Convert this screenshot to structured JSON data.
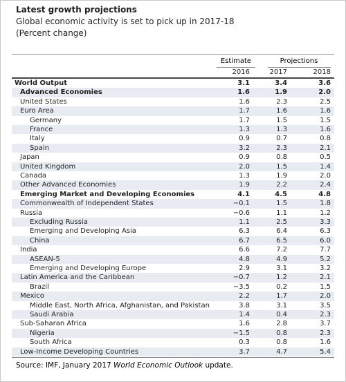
{
  "header": {
    "title": "Latest growth projections",
    "subtitle": "Global economic activity is set to pick up in 2017-18",
    "note": "(Percent change)"
  },
  "table": {
    "group_headers": [
      "Estimate",
      "Projections"
    ],
    "columns": [
      "2016",
      "2017",
      "2018"
    ],
    "rows": [
      [
        "World Output",
        "3.1",
        "3.4",
        "3.6"
      ],
      [
        "Advanced Economies",
        "1.6",
        "1.9",
        "2.0"
      ],
      [
        "United States",
        "1.6",
        "2.3",
        "2.5"
      ],
      [
        "Euro Area",
        "1.7",
        "1.6",
        "1.6"
      ],
      [
        "Germany",
        "1.7",
        "1.5",
        "1.5"
      ],
      [
        "France",
        "1.3",
        "1.3",
        "1.6"
      ],
      [
        "Italy",
        "0.9",
        "0.7",
        "0.8"
      ],
      [
        "Spain",
        "3.2",
        "2.3",
        "2.1"
      ],
      [
        "Japan",
        "0.9",
        "0.8",
        "0.5"
      ],
      [
        "United Kingdom",
        "2.0",
        "1.5",
        "1.4"
      ],
      [
        "Canada",
        "1.3",
        "1.9",
        "2.0"
      ],
      [
        "Other Advanced Economies",
        "1.9",
        "2.2",
        "2.4"
      ],
      [
        "Emerging Market and Developing Economies",
        "4.1",
        "4.5",
        "4.8"
      ],
      [
        "Commonwealth of Independent States",
        "−0.1",
        "1.5",
        "1.8"
      ],
      [
        "Russia",
        "−0.6",
        "1.1",
        "1.2"
      ],
      [
        "Excluding Russia",
        "1.1",
        "2.5",
        "3.3"
      ],
      [
        "Emerging and Developing Asia",
        "6.3",
        "6.4",
        "6.3"
      ],
      [
        "China",
        "6.7",
        "6.5",
        "6.0"
      ],
      [
        "India",
        "6.6",
        "7.2",
        "7.7"
      ],
      [
        "ASEAN-5",
        "4.8",
        "4.9",
        "5.2"
      ],
      [
        "Emerging and Developing Europe",
        "2.9",
        "3.1",
        "3.2"
      ],
      [
        "Latin America and the Caribbean",
        "−0.7",
        "1.2",
        "2.1"
      ],
      [
        "Brazil",
        "−3.5",
        "0.2",
        "1.5"
      ],
      [
        "Mexico",
        "2.2",
        "1.7",
        "2.0"
      ],
      [
        "Middle East, North Africa, Afghanistan, and Pakistan",
        "3.8",
        "3.1",
        "3.5"
      ],
      [
        "Saudi Arabia",
        "1.4",
        "0.4",
        "2.3"
      ],
      [
        "Sub-Saharan Africa",
        "1.6",
        "2.8",
        "3.7"
      ],
      [
        "Nigeria",
        "−1.5",
        "0.8",
        "2.3"
      ],
      [
        "South Africa",
        "0.3",
        "0.8",
        "1.6"
      ],
      [
        "Low-Income Developing Countries",
        "3.7",
        "4.7",
        "5.4"
      ]
    ]
  },
  "source": {
    "prefix": "Source: IMF, January 2017 ",
    "italic": "World Economic Outlook",
    "suffix": " update."
  }
}
